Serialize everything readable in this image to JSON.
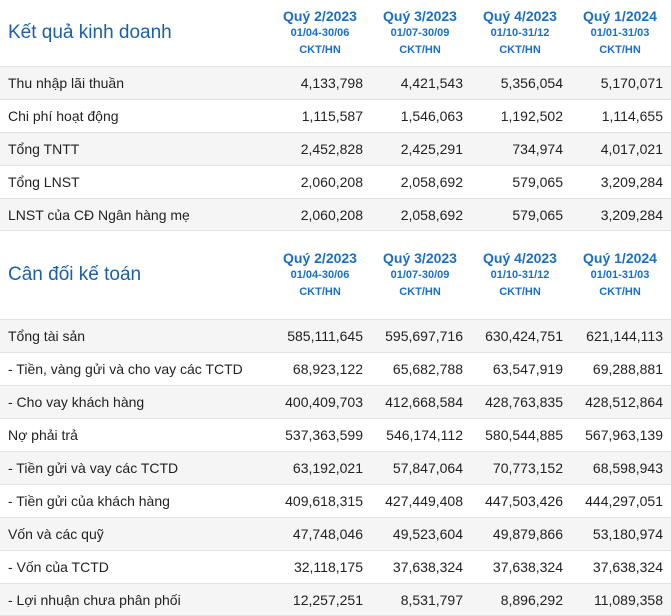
{
  "columns": [
    {
      "quarter": "Quý 2/2023",
      "dates": "01/04-30/06",
      "unit": "CKT/HN"
    },
    {
      "quarter": "Quý 3/2023",
      "dates": "01/07-30/09",
      "unit": "CKT/HN"
    },
    {
      "quarter": "Quý 4/2023",
      "dates": "01/10-31/12",
      "unit": "CKT/HN"
    },
    {
      "quarter": "Quý 1/2024",
      "dates": "01/01-31/03",
      "unit": "CKT/HN"
    }
  ],
  "income": {
    "title": "Kết quả kinh doanh",
    "rows": [
      {
        "label": "Thu nhập lãi thuần",
        "values": [
          "4,133,798",
          "4,421,543",
          "5,356,054",
          "5,170,071"
        ]
      },
      {
        "label": "Chi phí hoạt động",
        "values": [
          "1,115,587",
          "1,546,063",
          "1,192,502",
          "1,114,655"
        ]
      },
      {
        "label": "Tổng TNTT",
        "values": [
          "2,452,828",
          "2,425,291",
          "734,974",
          "4,017,021"
        ]
      },
      {
        "label": "Tổng LNST",
        "values": [
          "2,060,208",
          "2,058,692",
          "579,065",
          "3,209,284"
        ]
      },
      {
        "label": "LNST của CĐ Ngân hàng mẹ",
        "values": [
          "2,060,208",
          "2,058,692",
          "579,065",
          "3,209,284"
        ]
      }
    ]
  },
  "balance": {
    "title": "Cân đối kế toán",
    "rows": [
      {
        "label": "Tổng tài sản",
        "values": [
          "585,111,645",
          "595,697,716",
          "630,424,751",
          "621,144,113"
        ]
      },
      {
        "label": "- Tiền, vàng gửi và cho vay các TCTD",
        "values": [
          "68,923,122",
          "65,682,788",
          "63,547,919",
          "69,288,881"
        ]
      },
      {
        "label": "- Cho vay khách hàng",
        "values": [
          "400,409,703",
          "412,668,584",
          "428,763,835",
          "428,512,864"
        ]
      },
      {
        "label": "Nợ phải trả",
        "values": [
          "537,363,599",
          "546,174,112",
          "580,544,885",
          "567,963,139"
        ]
      },
      {
        "label": "- Tiền gửi và vay các TCTD",
        "values": [
          "63,192,021",
          "57,847,064",
          "70,773,152",
          "68,598,943"
        ]
      },
      {
        "label": "- Tiền gửi của khách hàng",
        "values": [
          "409,618,315",
          "427,449,408",
          "447,503,426",
          "444,297,051"
        ]
      },
      {
        "label": "Vốn và các quỹ",
        "values": [
          "47,748,046",
          "49,523,604",
          "49,879,866",
          "53,180,974"
        ]
      },
      {
        "label": "- Vốn của TCTD",
        "values": [
          "32,118,175",
          "37,638,324",
          "37,638,324",
          "37,638,324"
        ]
      },
      {
        "label": "- Lợi nhuận chưa phân phối",
        "values": [
          "12,257,251",
          "8,531,797",
          "8,896,292",
          "11,089,358"
        ]
      }
    ]
  }
}
